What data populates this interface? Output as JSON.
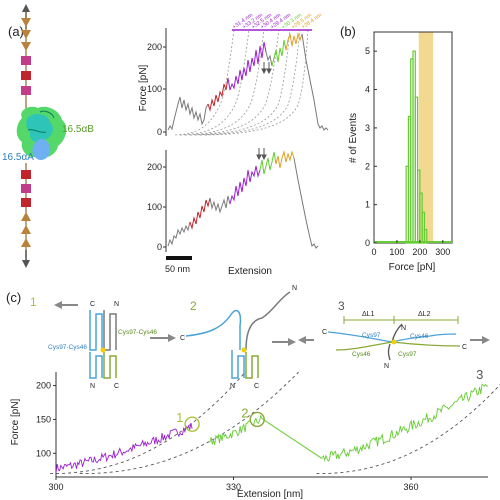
{
  "panels": {
    "a": "(a)",
    "b": "(b)",
    "c": "(c)"
  },
  "protein_labels": {
    "alpha_b": "16.5αB",
    "alpha_a": "16.5αA"
  },
  "colors": {
    "gray": "#7a7a7a",
    "red": "#c0242c",
    "purple": "#9b1fcf",
    "green": "#66cc33",
    "orange": "#e0a020",
    "tri": "#b8823a",
    "square": "#c23c8c",
    "blue_strand": "#4aa3d8",
    "olive_strand": "#8aa836",
    "highlight": "#f2d890"
  },
  "panel_a_top": {
    "ylabel": "Force [pN]",
    "yticks": [
      "200",
      "100",
      "0"
    ],
    "contour_labels": [
      "+31.4 nm",
      "+33.2 nm",
      "+32.5 nm",
      "+30.4 nm",
      "+29.4 nm",
      "+30.3 nm",
      "+29.5 nm",
      "+28.4 nm"
    ],
    "contour_colors": [
      "#9b1fcf",
      "#9b1fcf",
      "#9b1fcf",
      "#9b1fcf",
      "#9b1fcf",
      "#66cc33",
      "#e0a020",
      "#e0a020"
    ]
  },
  "panel_a_bottom": {
    "yticks": [
      "200",
      "100",
      "0"
    ],
    "xlabel": "Extension",
    "scalebar": "50 nm"
  },
  "chart_data": [
    {
      "type": "bar",
      "panel": "b",
      "xlabel": "Force [pN]",
      "ylabel": "# of Events",
      "xlim": [
        0,
        340
      ],
      "ylim": [
        0,
        5.5
      ],
      "xticks": [
        "0",
        "100",
        "200",
        "300"
      ],
      "yticks": [
        "0",
        "1",
        "2",
        "3",
        "4",
        "5"
      ],
      "bin_width": 10,
      "bins": [
        {
          "x": 145,
          "y": 2
        },
        {
          "x": 155,
          "y": 3.3
        },
        {
          "x": 165,
          "y": 4.8
        },
        {
          "x": 175,
          "y": 5.0
        },
        {
          "x": 185,
          "y": 3.8
        },
        {
          "x": 195,
          "y": 1.9
        },
        {
          "x": 205,
          "y": 1.3
        },
        {
          "x": 215,
          "y": 0.8
        },
        {
          "x": 225,
          "y": 0.35
        }
      ],
      "shaded_range": [
        195,
        258
      ]
    },
    {
      "type": "line",
      "panel": "c",
      "xlabel": "Extension [nm]",
      "ylabel": "Force [pN]",
      "xlim": [
        300,
        373
      ],
      "ylim": [
        65,
        220
      ],
      "xticks": [
        "300",
        "330",
        "360"
      ],
      "yticks": [
        "100",
        "150",
        "200"
      ],
      "markers": [
        "1",
        "2",
        "3"
      ]
    }
  ],
  "panel_c_diagram": {
    "step1": "1",
    "step2": "2",
    "step3": "3",
    "c_term": "C",
    "n_term": "N",
    "cys_left": "Cys97-Cys46",
    "cys_right": "Cys97-Cys46",
    "cys97": "Cys97",
    "cys46": "Cys46",
    "dl1": "ΔL1",
    "dl2": "ΔL2"
  }
}
